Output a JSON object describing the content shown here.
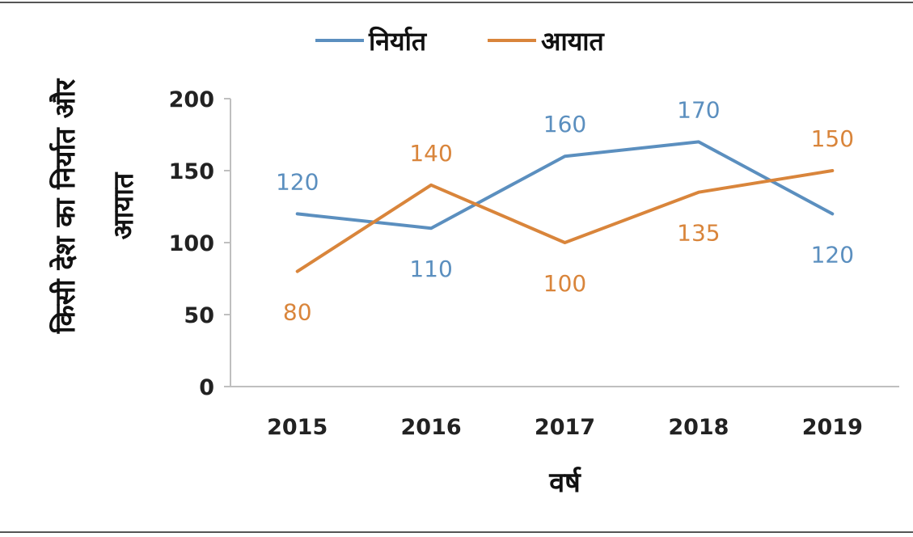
{
  "chart_data": {
    "type": "line",
    "title": "",
    "xlabel": "वर्ष",
    "ylabel": "किसी देश का निर्यात और आयात",
    "categories": [
      "2015",
      "2016",
      "2017",
      "2018",
      "2019"
    ],
    "ylim": [
      0,
      200
    ],
    "yticks": [
      "0",
      "50",
      "100",
      "150",
      "200"
    ],
    "grid": false,
    "legend_position": "top",
    "series": [
      {
        "name": "निर्यात",
        "color": "#5b8fbf",
        "values": [
          120,
          110,
          160,
          170,
          120
        ],
        "labels": [
          "120",
          "110",
          "160",
          "170",
          "120"
        ]
      },
      {
        "name": "आयात",
        "color": "#d9853b",
        "values": [
          80,
          140,
          100,
          135,
          150
        ],
        "labels": [
          "80",
          "140",
          "100",
          "135",
          "150"
        ]
      }
    ]
  }
}
